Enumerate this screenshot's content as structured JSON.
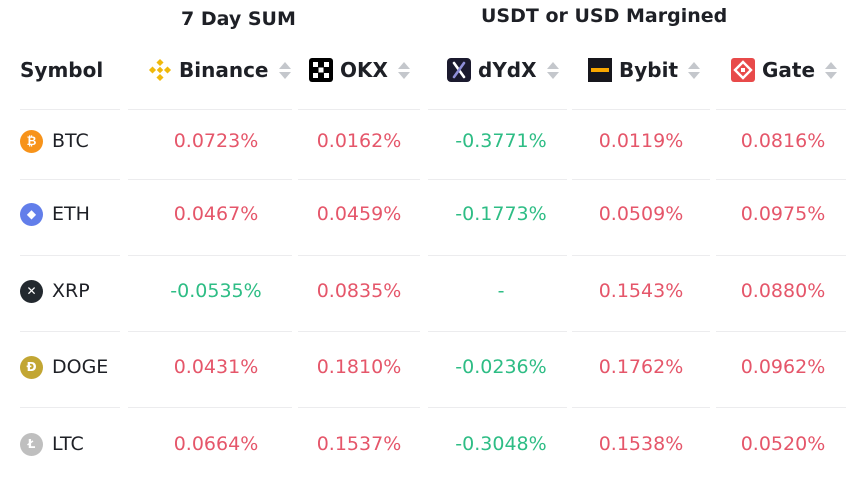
{
  "headers": {
    "group_sum": "7 Day SUM",
    "group_margin": "USDT or USD Margined",
    "symbol": "Symbol",
    "binance": "Binance",
    "okx": "OKX",
    "dydx": "dYdX",
    "bybit": "Bybit",
    "gate": "Gate"
  },
  "icons": {
    "binance": "binance-logo-icon",
    "okx": "okx-logo-icon",
    "dydx": "dydx-logo-icon",
    "bybit": "bybit-logo-icon",
    "gate": "gate-logo-icon",
    "sort": "sort-arrows-icon"
  },
  "colors": {
    "negative": "#2ebd85",
    "positive": "#e5566a",
    "binance": "#f0b90b",
    "gate": "#e84a4a",
    "btc": "#f7931a",
    "eth": "#627eea",
    "xrp": "#23292f",
    "doge": "#c2a633",
    "ltc": "#bfbfbf"
  },
  "rows": [
    {
      "symbol": "BTC",
      "glyph": "₿",
      "binance": "0.0723%",
      "okx": "0.0162%",
      "dydx": "-0.3771%",
      "bybit": "0.0119%",
      "gate": "0.0816%"
    },
    {
      "symbol": "ETH",
      "glyph": "◆",
      "binance": "0.0467%",
      "okx": "0.0459%",
      "dydx": "-0.1773%",
      "bybit": "0.0509%",
      "gate": "0.0975%"
    },
    {
      "symbol": "XRP",
      "glyph": "✕",
      "binance": "-0.0535%",
      "okx": "0.0835%",
      "dydx": "-",
      "bybit": "0.1543%",
      "gate": "0.0880%"
    },
    {
      "symbol": "DOGE",
      "glyph": "Ð",
      "binance": "0.0431%",
      "okx": "0.1810%",
      "dydx": "-0.0236%",
      "bybit": "0.1762%",
      "gate": "0.0962%"
    },
    {
      "symbol": "LTC",
      "glyph": "Ł",
      "binance": "0.0664%",
      "okx": "0.1537%",
      "dydx": "-0.3048%",
      "bybit": "0.1538%",
      "gate": "0.0520%"
    }
  ]
}
